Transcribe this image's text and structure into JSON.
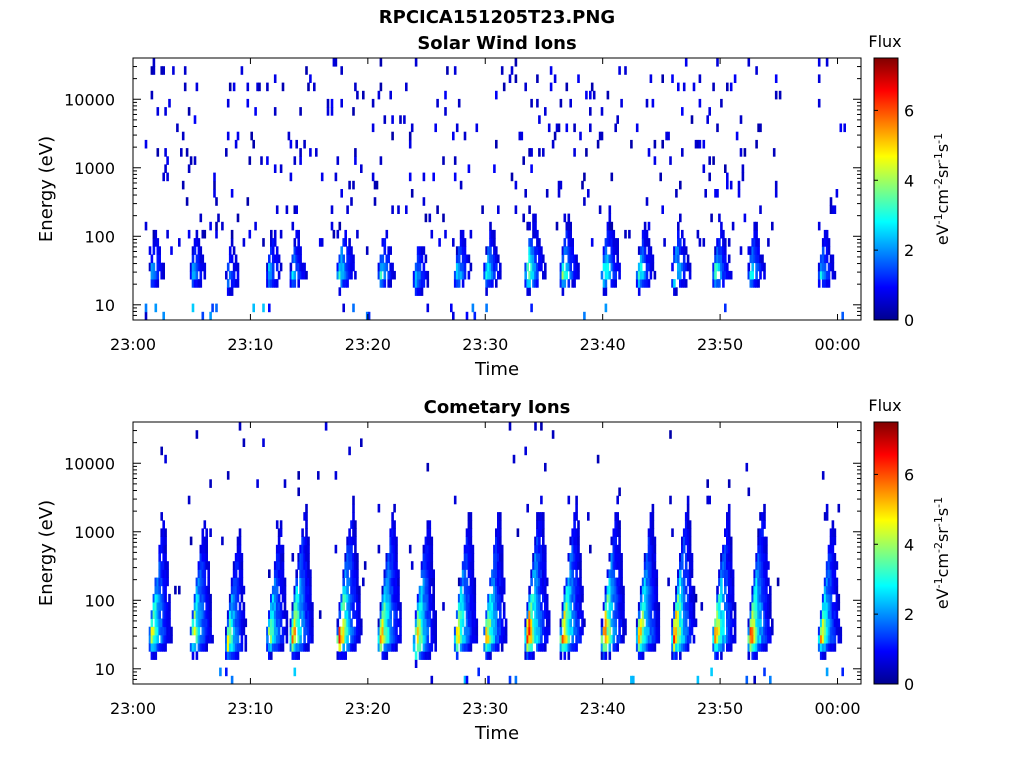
{
  "figure": {
    "title": "RPCICA151205T23.PNG"
  },
  "chart_data": [
    {
      "type": "heatmap",
      "title": "Solar Wind Ions",
      "xlabel": "Time",
      "ylabel": "Energy (eV)",
      "x_start": "23:00",
      "x_end": "00:02",
      "x_ticks": [
        "23:00",
        "23:10",
        "23:20",
        "23:30",
        "23:40",
        "23:50",
        "00:00"
      ],
      "y_scale": "log",
      "y_range": [
        6,
        40000
      ],
      "y_ticks": [
        10,
        100,
        1000,
        10000
      ],
      "y_tick_labels": [
        "10",
        "100",
        "1000",
        "10000"
      ],
      "colorbar": {
        "label": "Flux",
        "units": "eV-1cm-2sr-1s-1",
        "range": [
          0,
          7.5
        ],
        "ticks": [
          0,
          2,
          4,
          6
        ]
      },
      "colormap": "jet",
      "data_gap": [
        "23:55",
        "23:58"
      ],
      "bursts": [
        {
          "time_min": 2.5,
          "peak_energy_ev": 30,
          "peak_flux": 2.5
        },
        {
          "time_min": 6.0,
          "peak_energy_ev": 30,
          "peak_flux": 2.5
        },
        {
          "time_min": 9.0,
          "peak_energy_ev": 25,
          "peak_flux": 2.2
        },
        {
          "time_min": 12.5,
          "peak_energy_ev": 30,
          "peak_flux": 2.6
        },
        {
          "time_min": 14.5,
          "peak_energy_ev": 30,
          "peak_flux": 2.7
        },
        {
          "time_min": 18.5,
          "peak_energy_ev": 30,
          "peak_flux": 3.5
        },
        {
          "time_min": 22.0,
          "peak_energy_ev": 30,
          "peak_flux": 3.0
        },
        {
          "time_min": 25.0,
          "peak_energy_ev": 25,
          "peak_flux": 2.6
        },
        {
          "time_min": 28.5,
          "peak_energy_ev": 30,
          "peak_flux": 3.0
        },
        {
          "time_min": 31.0,
          "peak_energy_ev": 30,
          "peak_flux": 3.2
        },
        {
          "time_min": 34.5,
          "peak_energy_ev": 30,
          "peak_flux": 4.5
        },
        {
          "time_min": 37.5,
          "peak_energy_ev": 30,
          "peak_flux": 3.8
        },
        {
          "time_min": 41.0,
          "peak_energy_ev": 30,
          "peak_flux": 4.2
        },
        {
          "time_min": 44.0,
          "peak_energy_ev": 30,
          "peak_flux": 3.5
        },
        {
          "time_min": 47.0,
          "peak_energy_ev": 30,
          "peak_flux": 3.8
        },
        {
          "time_min": 50.5,
          "peak_energy_ev": 30,
          "peak_flux": 3.5
        },
        {
          "time_min": 53.5,
          "peak_energy_ev": 30,
          "peak_flux": 3.2
        },
        {
          "time_min": 59.5,
          "peak_energy_ev": 30,
          "peak_flux": 2.8
        }
      ]
    },
    {
      "type": "heatmap",
      "title": "Cometary Ions",
      "xlabel": "Time",
      "ylabel": "Energy (eV)",
      "x_start": "23:00",
      "x_end": "00:02",
      "x_ticks": [
        "23:00",
        "23:10",
        "23:20",
        "23:30",
        "23:40",
        "23:50",
        "00:00"
      ],
      "y_scale": "log",
      "y_range": [
        6,
        40000
      ],
      "y_ticks": [
        10,
        100,
        1000,
        10000
      ],
      "y_tick_labels": [
        "10",
        "100",
        "1000",
        "10000"
      ],
      "colorbar": {
        "label": "Flux",
        "units": "eV-1cm-2sr-1s-1",
        "range": [
          0,
          7.5
        ],
        "ticks": [
          0,
          2,
          4,
          6
        ]
      },
      "colormap": "jet",
      "data_gap": [
        "23:55",
        "23:58"
      ],
      "bursts": [
        {
          "time_min": 2.5,
          "peak_energy_ev": 30,
          "peak_flux": 5.0
        },
        {
          "time_min": 6.0,
          "peak_energy_ev": 30,
          "peak_flux": 5.0
        },
        {
          "time_min": 9.0,
          "peak_energy_ev": 25,
          "peak_flux": 4.5
        },
        {
          "time_min": 12.5,
          "peak_energy_ev": 30,
          "peak_flux": 4.5
        },
        {
          "time_min": 14.5,
          "peak_energy_ev": 30,
          "peak_flux": 6.0
        },
        {
          "time_min": 18.5,
          "peak_energy_ev": 30,
          "peak_flux": 6.5
        },
        {
          "time_min": 22.0,
          "peak_energy_ev": 30,
          "peak_flux": 6.0
        },
        {
          "time_min": 25.0,
          "peak_energy_ev": 25,
          "peak_flux": 6.0
        },
        {
          "time_min": 28.5,
          "peak_energy_ev": 30,
          "peak_flux": 5.5
        },
        {
          "time_min": 31.0,
          "peak_energy_ev": 30,
          "peak_flux": 5.5
        },
        {
          "time_min": 34.5,
          "peak_energy_ev": 30,
          "peak_flux": 7.0
        },
        {
          "time_min": 37.5,
          "peak_energy_ev": 30,
          "peak_flux": 6.5
        },
        {
          "time_min": 41.0,
          "peak_energy_ev": 30,
          "peak_flux": 6.5
        },
        {
          "time_min": 44.0,
          "peak_energy_ev": 30,
          "peak_flux": 6.0
        },
        {
          "time_min": 47.0,
          "peak_energy_ev": 30,
          "peak_flux": 6.5
        },
        {
          "time_min": 50.5,
          "peak_energy_ev": 30,
          "peak_flux": 6.0
        },
        {
          "time_min": 53.5,
          "peak_energy_ev": 30,
          "peak_flux": 6.5
        },
        {
          "time_min": 59.5,
          "peak_energy_ev": 30,
          "peak_flux": 5.0
        }
      ]
    }
  ]
}
